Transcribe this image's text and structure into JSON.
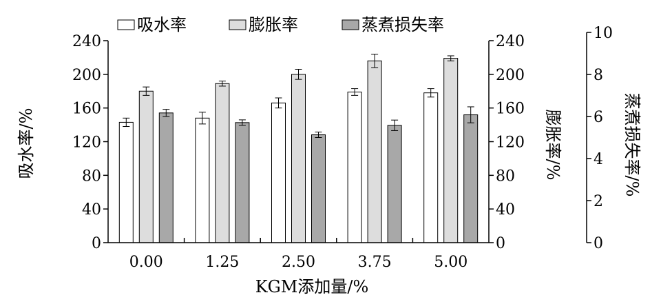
{
  "chart_data": {
    "type": "bar",
    "xlabel": "KGM添加量/%",
    "categories": [
      "0.00",
      "1.25",
      "2.50",
      "3.75",
      "5.00"
    ],
    "y_left": {
      "label": "吸水率/%",
      "range": [
        0,
        240
      ],
      "ticks": [
        "0",
        "40",
        "80",
        "120",
        "160",
        "200",
        "240"
      ]
    },
    "y_mid": {
      "label": "膨胀率/%",
      "range": [
        0,
        240
      ],
      "ticks": [
        "0",
        "40",
        "80",
        "120",
        "160",
        "200",
        "240"
      ]
    },
    "y_right": {
      "label": "蒸煮损失率/%",
      "range": [
        0,
        10
      ],
      "ticks": [
        "0",
        "2",
        "4",
        "6",
        "8",
        "10"
      ]
    },
    "legend_position": "top",
    "series": [
      {
        "name": "吸水率",
        "axis": "left",
        "color": "#ffffff",
        "values": [
          143,
          148,
          166,
          179,
          178
        ],
        "errors": [
          5,
          7,
          6,
          4,
          5
        ]
      },
      {
        "name": "膨胀率",
        "axis": "mid",
        "color": "#dddddd",
        "values": [
          180,
          189,
          200,
          216,
          219
        ],
        "errors": [
          5,
          3,
          6,
          8,
          3
        ]
      },
      {
        "name": "蒸煮损失率",
        "axis": "right",
        "color": "#a8a8a8",
        "values": [
          6.17,
          5.71,
          5.13,
          5.58,
          6.08
        ],
        "errors": [
          0.17,
          0.13,
          0.13,
          0.25,
          0.38
        ]
      }
    ]
  }
}
